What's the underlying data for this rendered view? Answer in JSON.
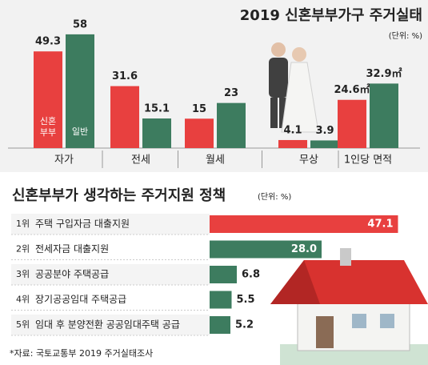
{
  "chart_data": [
    {
      "type": "bar",
      "title": "2019 신혼부부가구 주거실태",
      "unit": "(단위: %)",
      "categories": [
        "자가",
        "전세",
        "월세",
        "무상",
        "1인당 면적"
      ],
      "series": [
        {
          "name": "신혼부부",
          "color": "#e8403f",
          "values": [
            49.3,
            31.6,
            15,
            4.1,
            24.6
          ],
          "value_labels": [
            "49.3",
            "31.6",
            "15",
            "4.1",
            "24.6㎡"
          ]
        },
        {
          "name": "일반",
          "color": "#3d7c5f",
          "values": [
            58,
            15.1,
            23,
            3.9,
            32.9
          ],
          "value_labels": [
            "58",
            "15.1",
            "23",
            "3.9",
            "32.9㎡"
          ]
        }
      ]
    },
    {
      "type": "barh",
      "title": "신혼부부가 생각하는 주거지원 정책",
      "unit": "(단위: %)",
      "ranks": [
        "1위",
        "2위",
        "3위",
        "4위",
        "5위"
      ],
      "categories": [
        "주택 구입자금 대출지원",
        "전세자금 대출지원",
        "공공분야 주택공급",
        "장기공공임대 주택공급",
        "임대 후 분양전환 공공임대주택 공급"
      ],
      "colors": [
        "#e8403f",
        "#3d7c5f",
        "#3d7c5f",
        "#3d7c5f",
        "#3d7c5f"
      ],
      "values": [
        47.1,
        28.0,
        6.8,
        5.5,
        5.2
      ],
      "value_labels": [
        "47.1",
        "28.0",
        "6.8",
        "5.5",
        "5.2"
      ]
    },
    {
      "source": "*자료: 국토교통부 2019 주거실태조사"
    }
  ]
}
